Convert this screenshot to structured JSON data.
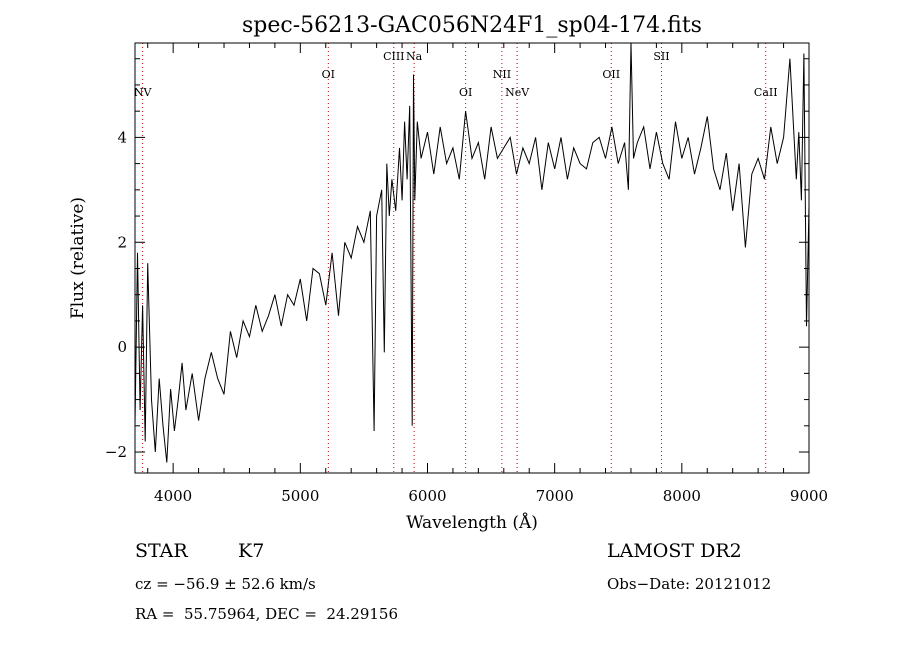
{
  "chart_data": {
    "type": "line",
    "title": "spec-56213-GAC056N24F1_sp04-174.fits",
    "xlabel": "Wavelength (Å)",
    "ylabel": "Flux (relative)",
    "xlim": [
      3700,
      9000
    ],
    "ylim": [
      -2.4,
      5.8
    ],
    "x_ticks": [
      4000,
      5000,
      6000,
      7000,
      8000,
      9000
    ],
    "x_tick_labels": [
      "4000",
      "5000",
      "6000",
      "7000",
      "8000",
      "9000"
    ],
    "y_ticks": [
      -2,
      0,
      2,
      4
    ],
    "y_tick_labels": [
      "−2",
      "0",
      "2",
      "4"
    ],
    "grid": false,
    "line_color": "#000000",
    "marker_color": "#cc0000",
    "series": [
      {
        "x": [
          3700,
          3720,
          3740,
          3760,
          3780,
          3800,
          3830,
          3860,
          3890,
          3920,
          3950,
          3980,
          4010,
          4040,
          4070,
          4100,
          4150,
          4200,
          4250,
          4300,
          4350,
          4400,
          4450,
          4500,
          4550,
          4600,
          4650,
          4700,
          4750,
          4800,
          4850,
          4900,
          4950,
          5000,
          5050,
          5100,
          5150,
          5200,
          5250,
          5300,
          5350,
          5400,
          5450,
          5500,
          5550,
          5580,
          5600,
          5640,
          5660,
          5680,
          5700,
          5720,
          5750,
          5780,
          5800,
          5820,
          5840,
          5860,
          5880,
          5890,
          5900,
          5920,
          5950,
          6000,
          6050,
          6100,
          6150,
          6200,
          6250,
          6300,
          6350,
          6400,
          6450,
          6500,
          6550,
          6600,
          6650,
          6700,
          6750,
          6800,
          6850,
          6900,
          6950,
          7000,
          7050,
          7100,
          7150,
          7200,
          7250,
          7300,
          7350,
          7400,
          7450,
          7500,
          7550,
          7580,
          7600,
          7620,
          7650,
          7700,
          7750,
          7800,
          7850,
          7900,
          7950,
          8000,
          8050,
          8100,
          8150,
          8200,
          8250,
          8300,
          8350,
          8400,
          8450,
          8500,
          8550,
          8600,
          8650,
          8700,
          8750,
          8800,
          8850,
          8900,
          8920,
          8940,
          8960,
          8980,
          9000
        ],
        "y": [
          -1.5,
          1.8,
          -1.2,
          0.8,
          -1.8,
          1.6,
          -1.0,
          -2.0,
          -0.6,
          -1.5,
          -2.2,
          -0.8,
          -1.6,
          -1.0,
          -0.3,
          -1.2,
          -0.5,
          -1.4,
          -0.6,
          -0.1,
          -0.6,
          -0.9,
          0.3,
          -0.2,
          0.5,
          0.2,
          0.8,
          0.3,
          0.6,
          1.0,
          0.4,
          1.0,
          0.8,
          1.3,
          0.5,
          1.5,
          1.4,
          0.8,
          1.8,
          0.6,
          2.0,
          1.7,
          2.3,
          2.0,
          2.6,
          -1.6,
          2.5,
          3.0,
          -0.1,
          3.5,
          2.5,
          3.2,
          2.6,
          3.8,
          2.8,
          4.3,
          3.2,
          4.6,
          -1.5,
          5.2,
          2.8,
          4.3,
          3.6,
          4.1,
          3.3,
          4.2,
          3.5,
          3.8,
          3.2,
          4.5,
          3.6,
          3.9,
          3.2,
          4.2,
          3.6,
          3.8,
          4.0,
          3.3,
          3.8,
          3.5,
          4.0,
          3.0,
          3.9,
          3.4,
          4.0,
          3.2,
          3.8,
          3.5,
          3.4,
          3.9,
          4.0,
          3.6,
          4.2,
          3.5,
          3.9,
          3.0,
          5.8,
          3.6,
          3.9,
          4.2,
          3.4,
          4.1,
          3.5,
          3.2,
          4.3,
          3.6,
          4.0,
          3.3,
          3.8,
          4.4,
          3.4,
          3.0,
          3.7,
          2.6,
          3.5,
          1.9,
          3.3,
          3.6,
          3.2,
          4.2,
          3.5,
          4.0,
          5.5,
          3.2,
          4.1,
          2.8,
          5.6,
          0.4,
          2.7
        ]
      }
    ],
    "line_markers": [
      {
        "label": "NV",
        "x": 3760,
        "row": 2
      },
      {
        "label": "OI",
        "x": 5220,
        "row": 1
      },
      {
        "label": "CIII",
        "x": 5735,
        "row": 0
      },
      {
        "label": "Na",
        "x": 5895,
        "row": 0
      },
      {
        "label": "OI",
        "x": 6300,
        "row": 2
      },
      {
        "label": "NII",
        "x": 6585,
        "row": 1
      },
      {
        "label": "NeV",
        "x": 6705,
        "row": 2
      },
      {
        "label": "OII",
        "x": 7445,
        "row": 1
      },
      {
        "label": "SII",
        "x": 7840,
        "row": 0
      },
      {
        "label": "CaII",
        "x": 8660,
        "row": 2
      }
    ]
  },
  "info": {
    "object_class": "STAR",
    "subclass": "K7",
    "survey": "LAMOST DR2",
    "cz": "cz = −56.9 ± 52.6 km/s",
    "obs_date": "Obs−Date: 20121012",
    "coords": "RA =  55.75964, DEC =  24.29156"
  }
}
